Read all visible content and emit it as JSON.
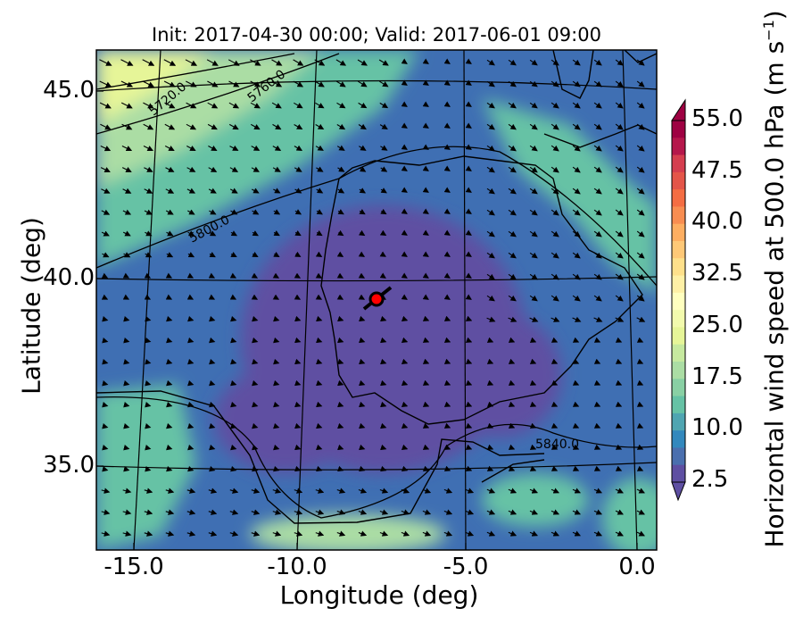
{
  "title": "Init: 2017-04-30 00:00; Valid: 2017-06-01 09:00",
  "axes": {
    "xlabel": "Longitude (deg)",
    "ylabel": "Latitude (deg)",
    "xticks": [
      "-15.0",
      "-10.0",
      "-5.0",
      "0.0"
    ],
    "yticks": [
      "45.0",
      "40.0",
      "35.0"
    ]
  },
  "colorbar": {
    "label_main": "Horizontal wind speed at 500.0 hPa (m s",
    "label_exp": "−1",
    "label_close": ")",
    "ticks": [
      "55.0",
      "47.5",
      "40.0",
      "32.5",
      "25.0",
      "17.5",
      "10.0",
      "2.5"
    ],
    "levels_min": 2.5,
    "levels_max": 55.0
  },
  "contours": [
    {
      "label": "5720.0"
    },
    {
      "label": "5760.0"
    },
    {
      "label": "5800.0"
    },
    {
      "label": "5840.0"
    }
  ],
  "marker": {
    "lon": -7.6,
    "lat": 39.3
  },
  "colors": {
    "calm": "#5e4fa2",
    "low": "#3f6fb3",
    "moderate": "#66c2a5",
    "high": "#abdda4",
    "very_high": "#e6f598"
  }
}
